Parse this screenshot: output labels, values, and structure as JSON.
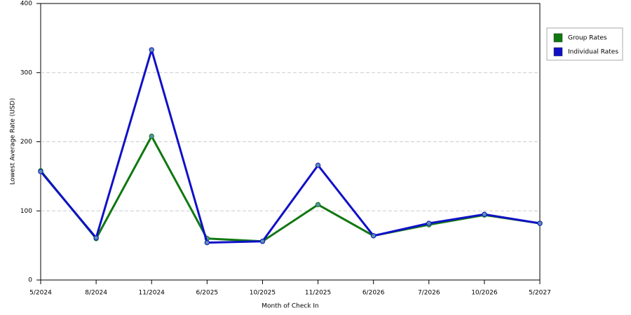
{
  "chart_data": {
    "type": "line",
    "x_label": "Month of Check In",
    "y_label": "Lowest Average Rate (USD)",
    "categories": [
      "5/2024",
      "8/2024",
      "11/2024",
      "6/2025",
      "10/2025",
      "11/2025",
      "6/2026",
      "7/2026",
      "10/2026",
      "5/2027"
    ],
    "series": [
      {
        "name": "Group Rates",
        "color": "#107810",
        "values": [
          158,
          60,
          208,
          60,
          56,
          109,
          64,
          80,
          94,
          82
        ]
      },
      {
        "name": "Individual Rates",
        "color": "#1010c8",
        "values": [
          157,
          61,
          333,
          54,
          56,
          166,
          64,
          82,
          95,
          82
        ]
      }
    ],
    "ylim": [
      0,
      400
    ],
    "yticks": [
      0,
      100,
      200,
      300,
      400
    ],
    "grid": true,
    "legend": "right"
  }
}
